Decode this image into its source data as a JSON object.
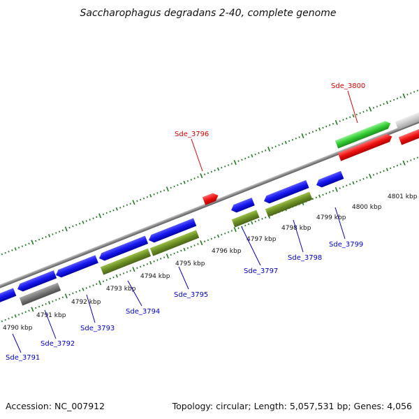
{
  "title": "Saccharophagus degradans 2-40, complete genome",
  "footer": {
    "accession": "Accession: NC_007912",
    "summary": "Topology: circular; Length: 5,057,531 bp; Genes: 4,056"
  },
  "colors": {
    "backbone": "#808080",
    "tick": "#1f7a1f",
    "cds_blue": "#1414e6",
    "olive": "#6b8e23",
    "red": "#ee1111",
    "green": "#33cc33",
    "grey": "#777777",
    "light_grey": "#cccccc",
    "label_red": "#dd0000",
    "label_blue": "#0000cc"
  },
  "kbp_labels": [
    "4790 kbp",
    "4791 kbp",
    "4792 kbp",
    "4793 kbp",
    "4794 kbp",
    "4795 kbp",
    "4796 kbp",
    "4797 kbp",
    "4798 kbp",
    "4799 kbp",
    "4800 kbp",
    "4801 kbp"
  ],
  "gene_labels": {
    "top": [
      "Sde_3796",
      "Sde_3800"
    ],
    "bottom": [
      "Sde_3791",
      "Sde_3792",
      "Sde_3793",
      "Sde_3794",
      "Sde_3795",
      "Sde_3797",
      "Sde_3798",
      "Sde_3799"
    ]
  }
}
